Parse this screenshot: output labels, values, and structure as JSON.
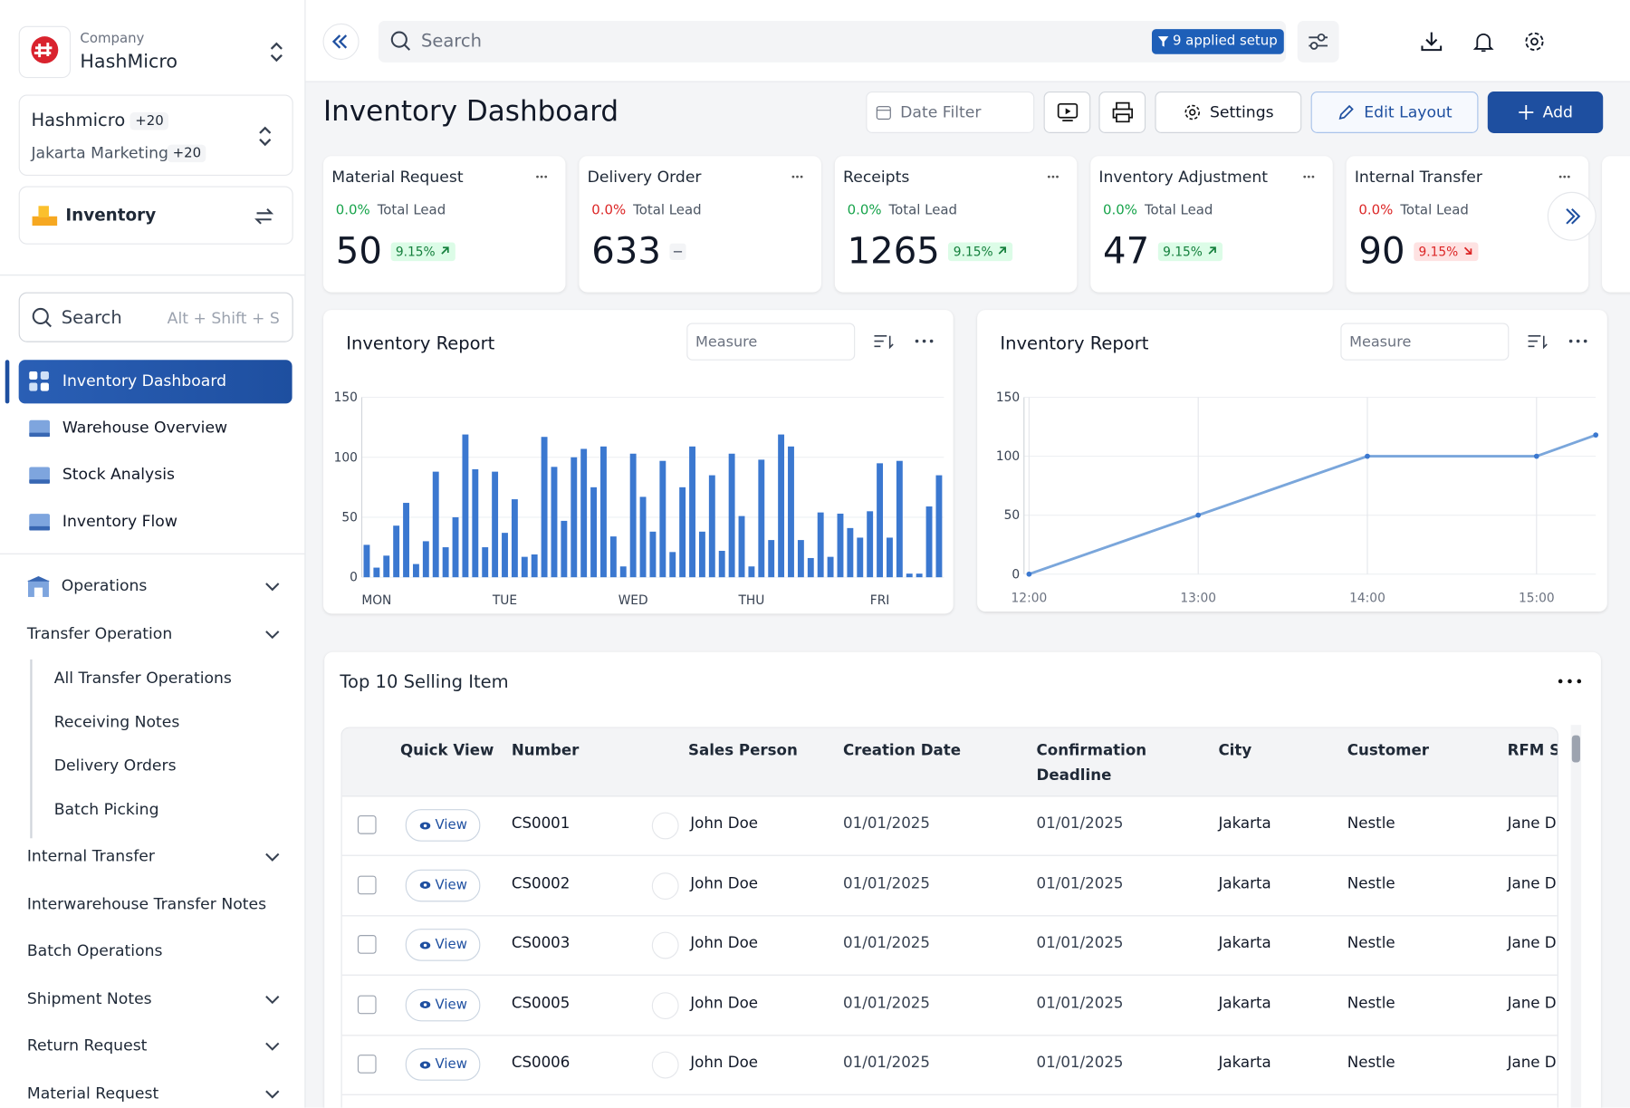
{
  "company": {
    "label": "Company",
    "name": "HashMicro"
  },
  "workspace": {
    "name": "Hashmicro",
    "count": "+20",
    "team": "Jakarta Marketing",
    "team_count": "+20"
  },
  "module": "Inventory",
  "sidebar_search": {
    "placeholder": "Search",
    "shortcut": "Alt + Shift + S"
  },
  "nav": [
    "Inventory Dashboard",
    "Warehouse Overview",
    "Stock Analysis",
    "Inventory Flow"
  ],
  "menu": [
    {
      "label": "Operations",
      "collapsible": true
    },
    {
      "label": "Transfer Operation",
      "collapsible": true,
      "children": [
        "All Transfer Operations",
        "Receiving Notes",
        "Delivery Orders",
        "Batch Picking"
      ]
    },
    {
      "label": "Internal Transfer",
      "collapsible": true
    },
    {
      "label": "Interwarehouse Transfer Notes",
      "collapsible": false
    },
    {
      "label": "Batch Operations",
      "collapsible": false
    },
    {
      "label": "Shipment Notes",
      "collapsible": true
    },
    {
      "label": "Return Request",
      "collapsible": true
    },
    {
      "label": "Material Request",
      "collapsible": true
    }
  ],
  "topbar": {
    "search": "Search",
    "filter_badge": "9 applied setup"
  },
  "header": {
    "title": "Inventory Dashboard",
    "date_filter": "Date Filter",
    "settings": "Settings",
    "edit_layout": "Edit Layout",
    "add": "Add"
  },
  "kpis": [
    {
      "title": "Material Request",
      "lead_pct": "0.0%",
      "lead_color": "green",
      "lead_label": "Total Lead",
      "value": "50",
      "change": "9.15%",
      "trend": "up"
    },
    {
      "title": "Delivery Order",
      "lead_pct": "0.0%",
      "lead_color": "red",
      "lead_label": "Total Lead",
      "value": "633",
      "trend": "flat"
    },
    {
      "title": "Receipts",
      "lead_pct": "0.0%",
      "lead_color": "green",
      "lead_label": "Total Lead",
      "value": "1265",
      "change": "9.15%",
      "trend": "up"
    },
    {
      "title": "Inventory Adjustment",
      "lead_pct": "0.0%",
      "lead_color": "green",
      "lead_label": "Total Lead",
      "value": "47",
      "change": "9.15%",
      "trend": "up"
    },
    {
      "title": "Internal Transfer",
      "lead_pct": "0.0%",
      "lead_color": "red",
      "lead_label": "Total Lead",
      "value": "90",
      "change": "9.15%",
      "trend": "down"
    }
  ],
  "chart_data": [
    {
      "type": "bar",
      "title": "Inventory Report",
      "placeholder": "Measure",
      "color": "#3b78d0",
      "grid": true,
      "categories": [
        null,
        "MON",
        null,
        null,
        null,
        null,
        null,
        null,
        null,
        null,
        null,
        null,
        null,
        null,
        "TUE",
        null,
        null,
        null,
        null,
        null,
        null,
        null,
        null,
        null,
        null,
        null,
        null,
        "WED",
        null,
        null,
        null,
        null,
        null,
        null,
        null,
        null,
        null,
        null,
        null,
        "THU",
        null,
        null,
        null,
        null,
        null,
        null,
        null,
        null,
        null,
        null,
        null,
        null,
        "FRI",
        null,
        null,
        null,
        null,
        null,
        null
      ],
      "values": [
        27,
        8,
        18,
        43,
        62,
        11,
        30,
        88,
        25,
        50,
        119,
        90,
        25,
        88,
        37,
        65,
        17,
        19,
        117,
        92,
        47,
        100,
        107,
        75,
        109,
        34,
        9,
        103,
        67,
        38,
        97,
        21,
        75,
        109,
        38,
        85,
        22,
        103,
        51,
        9,
        98,
        31,
        119,
        109,
        31,
        16,
        54,
        17,
        53,
        41,
        33,
        55,
        95,
        33,
        97,
        3,
        3,
        59,
        85
      ],
      "ylim": [
        0,
        150
      ],
      "yticks": [
        0,
        50,
        100,
        150
      ]
    },
    {
      "type": "line",
      "title": "Inventory Report",
      "placeholder": "Measure",
      "color": "#7aa6db",
      "grid": true,
      "x": [
        12,
        13,
        14,
        15,
        15.35
      ],
      "values": [
        0,
        50,
        100,
        100,
        118
      ],
      "xlim": [
        11.97,
        15.35
      ],
      "xticks": [
        {
          "value": 12,
          "label": "12:00"
        },
        {
          "value": 13,
          "label": "13:00"
        },
        {
          "value": 14,
          "label": "14:00"
        },
        {
          "value": 15,
          "label": "15:00"
        }
      ],
      "ylim": [
        0,
        150
      ],
      "yticks": [
        0,
        50,
        100,
        150
      ]
    }
  ],
  "table": {
    "title": "Top 10 Selling Item",
    "columns": [
      "Quick View",
      "Number",
      "Sales Person",
      "Creation Date",
      "Confirmation Deadline",
      "City",
      "Customer",
      "RFM Se"
    ],
    "rows": [
      [
        "View",
        "CS0001",
        "John Doe",
        "01/01/2025",
        "01/01/2025",
        "Jakarta",
        "Nestle",
        "Jane D"
      ],
      [
        "View",
        "CS0002",
        "John Doe",
        "01/01/2025",
        "01/01/2025",
        "Jakarta",
        "Nestle",
        "Jane D"
      ],
      [
        "View",
        "CS0003",
        "John Doe",
        "01/01/2025",
        "01/01/2025",
        "Jakarta",
        "Nestle",
        "Jane D"
      ],
      [
        "View",
        "CS0005",
        "John Doe",
        "01/01/2025",
        "01/01/2025",
        "Jakarta",
        "Nestle",
        "Jane D"
      ],
      [
        "View",
        "CS0006",
        "John Doe",
        "01/01/2025",
        "01/01/2025",
        "Jakarta",
        "Nestle",
        "Jane D"
      ]
    ]
  }
}
